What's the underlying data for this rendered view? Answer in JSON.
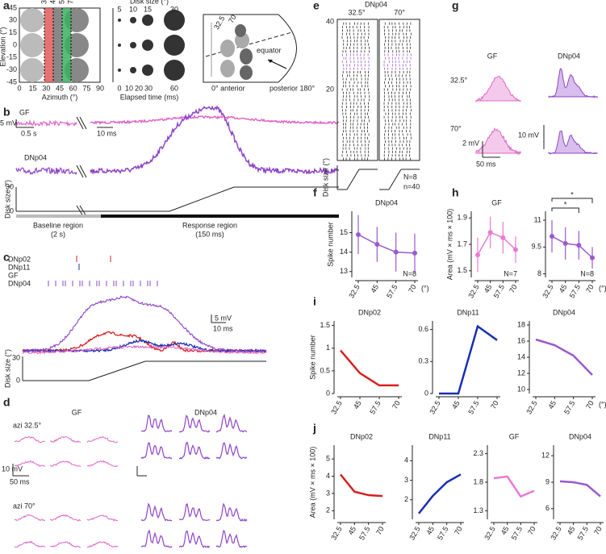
{
  "panel_labels": [
    "a",
    "b",
    "c",
    "d",
    "e",
    "f",
    "g",
    "h",
    "i",
    "j"
  ],
  "panel_a": {
    "azimuths": [
      "32.5",
      "45",
      "57.5",
      "70"
    ],
    "xticks": [
      0,
      15,
      30,
      45,
      60,
      75,
      90
    ],
    "yticks": [
      45,
      30,
      15,
      0,
      -15,
      -30,
      -45
    ],
    "xlabel": "Azimuth (°)",
    "ylabel": "Elevation (°)",
    "disk_size_label": "Disk size (°)",
    "disk_sizes": [
      5,
      10,
      15,
      30
    ],
    "time_label": "Elapsed time (ms)",
    "time_ticks": [
      0,
      10,
      20,
      30,
      60
    ],
    "dome_angles": [
      "32.5",
      "70"
    ],
    "equator": "equator",
    "posterior": "posterior 180°",
    "anterior": "0° anterior"
  },
  "panel_b": {
    "gf": "GF",
    "dnp04": "DNp04",
    "scale_mv": "5 mV",
    "scale_s": "0.5 s",
    "scale_ms": "10 ms",
    "disk_label": "Disk size (°)",
    "disk_max": 30,
    "disk_min": 0,
    "baseline": "Baseline region",
    "baseline_dur": "(2 s)",
    "response": "Response region",
    "response_dur": "(150 ms)"
  },
  "panel_c": {
    "names": [
      "DNp02",
      "DNp11",
      "GF",
      "DNp04"
    ],
    "scale_mv": "5 mV",
    "scale_ms": "10 ms",
    "disk_label": "Disk size (°)",
    "disk_max": 30,
    "disk_min": 0
  },
  "panel_d": {
    "gf": "GF",
    "dnp04": "DNp04",
    "azi1": "azi 32.5°",
    "azi2": "azi 70°",
    "scale_mv": "10 mV",
    "scale_ms": "50 ms"
  },
  "panel_e": {
    "title": "DNp04",
    "col1": "32.5°",
    "col2": "70°",
    "yticks": [
      40,
      20
    ],
    "disk_label": "Disk size (°)",
    "n_flies": "N=8",
    "n_trials": "n=40"
  },
  "panel_g": {
    "gf": "GF",
    "dnp04": "DNp04",
    "row1": "32.5°",
    "row2": "70°",
    "scale_gf": "2 mV",
    "scale_dn": "10 mV",
    "scale_ms": "50 ms"
  },
  "chart_data": [
    {
      "type": "line",
      "title": "DNp04",
      "title_color": "#8e44c8",
      "ylabel": "Spike number",
      "categories": [
        "32.5",
        "45",
        "57.5",
        "70"
      ],
      "x_unit": "(°)",
      "values": [
        14.9,
        14.4,
        14.0,
        13.95
      ],
      "errors": [
        1.0,
        0.9,
        1.0,
        1.0
      ],
      "color": "#9b59d0",
      "ylim": [
        12.7,
        16.1
      ],
      "yticks": [
        13,
        14,
        15
      ],
      "annotation": "N=8"
    },
    {
      "type": "line",
      "title": "GF",
      "title_color": "#e066c8",
      "ylabel": "Area (mV × ms × 100)",
      "categories": [
        "32.5",
        "45",
        "57.5",
        "70"
      ],
      "values": [
        1.62,
        1.79,
        1.75,
        1.66
      ],
      "errors": [
        0.13,
        0.12,
        0.12,
        0.1
      ],
      "color": "#e87ad4",
      "ylim": [
        1.45,
        1.95
      ],
      "yticks": [
        1.5,
        1.7,
        1.9
      ],
      "annotation": "N=7"
    },
    {
      "type": "line",
      "categories": [
        "32.5",
        "45",
        "57.5",
        "70"
      ],
      "x_unit": "(°)",
      "values": [
        10.1,
        9.7,
        9.6,
        8.9
      ],
      "errors": [
        0.9,
        0.9,
        0.8,
        0.6
      ],
      "color": "#9b59d0",
      "ylim": [
        7.8,
        11.5
      ],
      "yticks": [
        8,
        9.5,
        11
      ],
      "annotation": "N=8",
      "stars": [
        "*",
        "*"
      ]
    },
    {
      "type": "line",
      "title": "DNp02",
      "title_color": "#d62020",
      "ylabel": "Spike number",
      "categories": [
        "32.5",
        "45",
        "57.5",
        "70"
      ],
      "values": [
        0.95,
        0.45,
        0.18,
        0.18
      ],
      "color": "#d62020",
      "ylim": [
        0,
        1.6
      ],
      "yticks": [
        0,
        0.5,
        1,
        1.5
      ]
    },
    {
      "type": "line",
      "title": "DNp11",
      "title_color": "#1a2fb0",
      "categories": [
        "32.5",
        "45",
        "57.5",
        "70"
      ],
      "values": [
        0,
        0,
        0.63,
        0.5
      ],
      "color": "#1a2fb0",
      "ylim": [
        0,
        0.68
      ],
      "yticks": [
        0,
        0.3,
        0.6
      ]
    },
    {
      "type": "line",
      "title": "DNp04",
      "title_color": "#8e44c8",
      "categories": [
        "32.5",
        "45",
        "57.5",
        "70"
      ],
      "x_unit": "(°)",
      "values": [
        16.2,
        15.5,
        14.2,
        11.8
      ],
      "color": "#9b59d0",
      "ylim": [
        9.5,
        18.5
      ],
      "yticks": [
        10,
        12,
        14,
        16,
        18
      ]
    },
    {
      "type": "line",
      "title": "DNp02",
      "title_color": "#d62020",
      "ylabel": "Area (mV × ms × 100)",
      "categories": [
        "32.5",
        "45",
        "57.5",
        "70"
      ],
      "values": [
        4.1,
        3.1,
        2.9,
        2.85
      ],
      "color": "#d62020",
      "ylim": [
        1.5,
        5.8
      ],
      "yticks": [
        2,
        3,
        4,
        5
      ]
    },
    {
      "type": "line",
      "title": "DNp11",
      "title_color": "#1a2fb0",
      "categories": [
        "32.5",
        "45",
        "57.5",
        "70"
      ],
      "values": [
        1.3,
        2.2,
        2.9,
        3.3
      ],
      "color": "#1a2fb0",
      "ylim": [
        1,
        4.8
      ],
      "yticks": [
        2,
        3,
        4
      ]
    },
    {
      "type": "line",
      "title": "GF",
      "title_color": "#e066c8",
      "categories": [
        "32.5",
        "45",
        "57.5",
        "70"
      ],
      "values": [
        1.87,
        1.9,
        1.55,
        1.65
      ],
      "color": "#e87ad4",
      "ylim": [
        1.15,
        2.45
      ],
      "yticks": [
        1.3,
        1.8,
        2.3
      ]
    },
    {
      "type": "line",
      "title": "DNp04",
      "title_color": "#8e44c8",
      "categories": [
        "32.5",
        "45",
        "57.5",
        "70"
      ],
      "x_unit": "(°)",
      "values": [
        9.1,
        9.0,
        8.7,
        7.4
      ],
      "color": "#9b59d0",
      "ylim": [
        4.8,
        13.2
      ],
      "yticks": [
        6,
        9,
        12
      ]
    }
  ]
}
